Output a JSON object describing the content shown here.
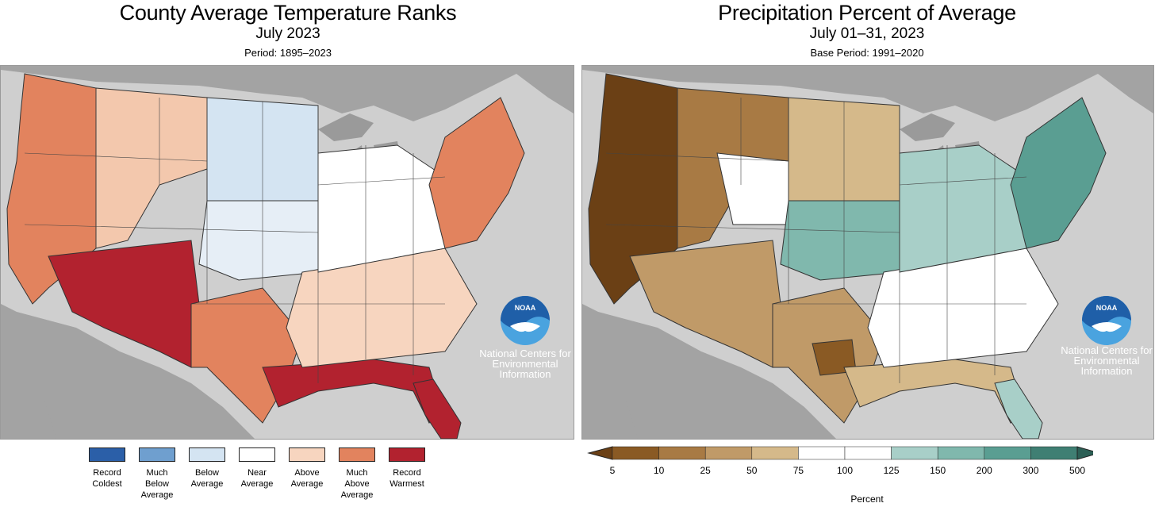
{
  "left": {
    "title": "County Average Temperature Ranks",
    "subtitle": "July 2023",
    "period": "Period: 1895–2023",
    "ncei": [
      "National Centers for",
      "Environmental",
      "Information"
    ],
    "legend": [
      {
        "label": [
          "Record",
          "Coldest"
        ],
        "color": "#2b5fa8"
      },
      {
        "label": [
          "Much",
          "Below",
          "Average"
        ],
        "color": "#6f9fcf"
      },
      {
        "label": [
          "Below",
          "Average"
        ],
        "color": "#d4e4f2"
      },
      {
        "label": [
          "Near",
          "Average"
        ],
        "color": "#ffffff"
      },
      {
        "label": [
          "Above",
          "Average"
        ],
        "color": "#f7d5bf"
      },
      {
        "label": [
          "Much",
          "Above",
          "Average"
        ],
        "color": "#e2835e"
      },
      {
        "label": [
          "Record",
          "Warmest"
        ],
        "color": "#b2222f"
      }
    ]
  },
  "right": {
    "title": "Precipitation Percent of Average",
    "subtitle": "July 01–31, 2023",
    "period": "Base Period: 1991–2020",
    "ncei": [
      "National Centers for",
      "Environmental",
      "Information"
    ],
    "colorbar": {
      "ticks": [
        "5",
        "10",
        "25",
        "50",
        "75",
        "100",
        "125",
        "150",
        "200",
        "300",
        "500"
      ],
      "colors": [
        "#8a5a24",
        "#a87a44",
        "#c09a68",
        "#d5b98a",
        "#ffffff",
        "#ffffff",
        "#a8cfc8",
        "#80b8ad",
        "#5a9e92",
        "#3f7f73"
      ],
      "under_color": "#6b4015",
      "over_color": "#2c5f55"
    },
    "axis_label": "Percent"
  },
  "colors": {
    "ocean": "#cfcfcf",
    "land_other": "#a0a0a0",
    "lakes": "#a0a0a0",
    "noaa_blue": "#1f5fa8",
    "noaa_light": "#4aa3df"
  }
}
